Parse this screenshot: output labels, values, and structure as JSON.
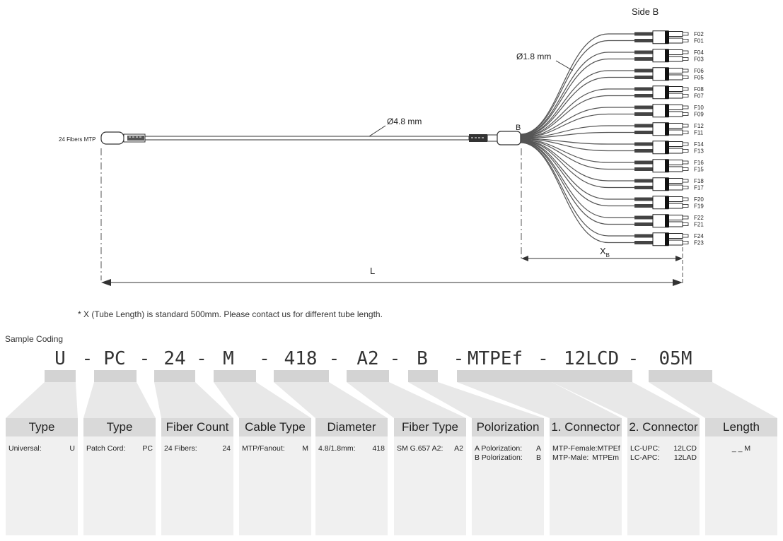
{
  "diagram": {
    "side_b_label": "Side B",
    "fanout_diameter": "Ø1.8 mm",
    "trunk_diameter": "Ø4.8 mm",
    "mtp_label": "24 Fibers MTP",
    "b_label": "B",
    "length_label": "L",
    "tube_label_main": "X",
    "tube_label_sub": "B",
    "fiber_labels": [
      "F02",
      "F01",
      "F04",
      "F03",
      "F06",
      "F05",
      "F08",
      "F07",
      "F10",
      "F09",
      "F12",
      "F11",
      "F14",
      "F13",
      "F16",
      "F15",
      "F18",
      "F17",
      "F20",
      "F19",
      "F22",
      "F21",
      "F24",
      "F23"
    ]
  },
  "note": "* X (Tube Length) is standard 500mm. Please contact us for different tube length.",
  "sample_coding_label": "Sample Coding",
  "code_parts": [
    "U",
    "PC",
    "24",
    "M",
    "418",
    "A2",
    "B",
    "MTPEf",
    "12LCD",
    "05M"
  ],
  "code_separator": "-",
  "columns": [
    {
      "header": "Type",
      "rows": [
        [
          "Universal:",
          "U"
        ]
      ]
    },
    {
      "header": "Type",
      "rows": [
        [
          "Patch Cord:",
          "PC"
        ]
      ]
    },
    {
      "header": "Fiber Count",
      "rows": [
        [
          "24 Fibers:",
          "24"
        ]
      ]
    },
    {
      "header": "Cable Type",
      "rows": [
        [
          "MTP/Fanout:",
          "M"
        ]
      ]
    },
    {
      "header": "Diameter",
      "rows": [
        [
          "4.8/1.8mm:",
          "418"
        ]
      ]
    },
    {
      "header": "Fiber Type",
      "rows": [
        [
          "SM G.657 A2:",
          "A2"
        ]
      ]
    },
    {
      "header": "Polorization",
      "rows": [
        [
          "A Polorization:",
          "A"
        ],
        [
          "B Polorization:",
          "B"
        ]
      ]
    },
    {
      "header": "1. Connector",
      "rows": [
        [
          "MTP-Female:",
          "MTPEf"
        ],
        [
          "MTP-Male:",
          "MTPEm"
        ]
      ]
    },
    {
      "header": "2. Connector",
      "rows": [
        [
          "LC-UPC:",
          "12LCD"
        ],
        [
          "LC-APC:",
          "12LAD"
        ]
      ]
    },
    {
      "header": "Length",
      "rows": [
        [
          "_ _ M"
        ]
      ]
    }
  ]
}
